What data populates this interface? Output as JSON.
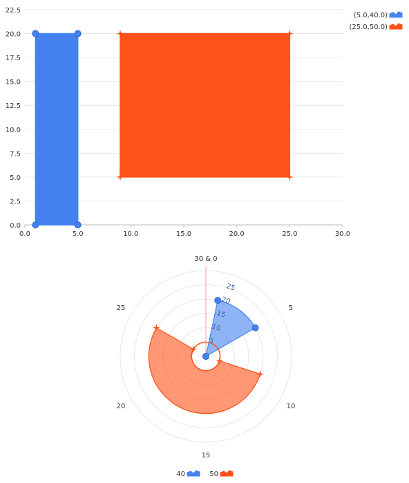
{
  "colors": {
    "blue": "#4582F0",
    "orange": "#FF5119",
    "grid": "#E6E6E6",
    "axis": "#BBBBBB",
    "text": "#333333"
  },
  "chart_data": [
    {
      "type": "area",
      "xlim": [
        0,
        30
      ],
      "ylim": [
        0,
        22.5
      ],
      "xticks": [
        "0.0",
        "5.0",
        "10.0",
        "15.0",
        "20.0",
        "25.0",
        "30.0"
      ],
      "yticks": [
        "0.0",
        "2.5",
        "5.0",
        "7.5",
        "10.0",
        "12.5",
        "15.0",
        "17.5",
        "20.0",
        "22.5"
      ],
      "legend_position": "top-right",
      "series": [
        {
          "name": "(5.0,40.0)",
          "color": "blue",
          "symbol": "circle",
          "points": [
            {
              "x": 1,
              "y": 20,
              "y0": 0
            },
            {
              "x": 5,
              "y": 20,
              "y0": 0
            }
          ]
        },
        {
          "name": "(25.0,50.0)",
          "color": "orange",
          "symbol": "star",
          "points": [
            {
              "x": 9,
              "y": 20,
              "y0": 5
            },
            {
              "x": 25,
              "y": 20,
              "y0": 5
            }
          ]
        }
      ]
    },
    {
      "type": "polar-area",
      "angle_range": [
        0,
        30
      ],
      "angle_ticks": [
        "30 & 0",
        "5",
        "10",
        "15",
        "20",
        "25"
      ],
      "rlim": [
        0,
        30
      ],
      "radial_ticks": [
        "5",
        "10",
        "15",
        "20",
        "25"
      ],
      "legend_position": "bottom",
      "series": [
        {
          "name": "40",
          "color": "blue",
          "symbol": "circle",
          "points": [
            {
              "theta": 1,
              "r": 20,
              "r0": 0
            },
            {
              "theta": 5,
              "r": 20,
              "r0": 0
            }
          ]
        },
        {
          "name": "50",
          "color": "orange",
          "symbol": "star",
          "points": [
            {
              "theta": 9,
              "r": 20,
              "r0": 5
            },
            {
              "theta": 25,
              "r": 20,
              "r0": 5
            }
          ]
        }
      ]
    }
  ]
}
